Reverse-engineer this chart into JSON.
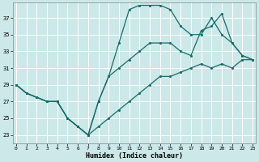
{
  "xlabel": "Humidex (Indice chaleur)",
  "bg_color": "#cce8e8",
  "grid_color": "#ffffff",
  "line_color": "#1a6b6b",
  "x_ticks": [
    0,
    1,
    2,
    3,
    4,
    5,
    6,
    7,
    8,
    9,
    10,
    11,
    12,
    13,
    14,
    15,
    16,
    17,
    18,
    19,
    20,
    21,
    22,
    23
  ],
  "y_ticks": [
    23,
    25,
    27,
    29,
    31,
    33,
    35,
    37
  ],
  "xlim": [
    -0.3,
    23.3
  ],
  "ylim": [
    22.0,
    38.8
  ],
  "line1_x": [
    0,
    1,
    2,
    3,
    4,
    5,
    6,
    7,
    8,
    9,
    10,
    11,
    12,
    13,
    14,
    15,
    16,
    17,
    18,
    19,
    20,
    21,
    22,
    23
  ],
  "line1_y": [
    29,
    28,
    27.5,
    27,
    27,
    25,
    24,
    23,
    24,
    25,
    26,
    27,
    28,
    29,
    30,
    30,
    30.5,
    31,
    31.5,
    31,
    31.5,
    31,
    32,
    32
  ],
  "line2_x": [
    0,
    1,
    2,
    3,
    4,
    5,
    6,
    7,
    8,
    9,
    10,
    11,
    12,
    13,
    14,
    15,
    16,
    17,
    18,
    19,
    20,
    21,
    22,
    23
  ],
  "line2_y": [
    29,
    28,
    27.5,
    27,
    27,
    25,
    24,
    23,
    27,
    30,
    34,
    38,
    38.5,
    38.5,
    38.5,
    38,
    36,
    35,
    35,
    37,
    35,
    34,
    32.5,
    32
  ],
  "line3_x": [
    0,
    1,
    2,
    3,
    4,
    5,
    6,
    7,
    8,
    9,
    10,
    11,
    12,
    13,
    14,
    15,
    16,
    17,
    18,
    19,
    20,
    21,
    22,
    23
  ],
  "line3_y": [
    29,
    28,
    27.5,
    27,
    27,
    25,
    24,
    23,
    27,
    30,
    31,
    32,
    33,
    34,
    34,
    34,
    33,
    32.5,
    35.5,
    36,
    37.5,
    34,
    32.5,
    32
  ]
}
